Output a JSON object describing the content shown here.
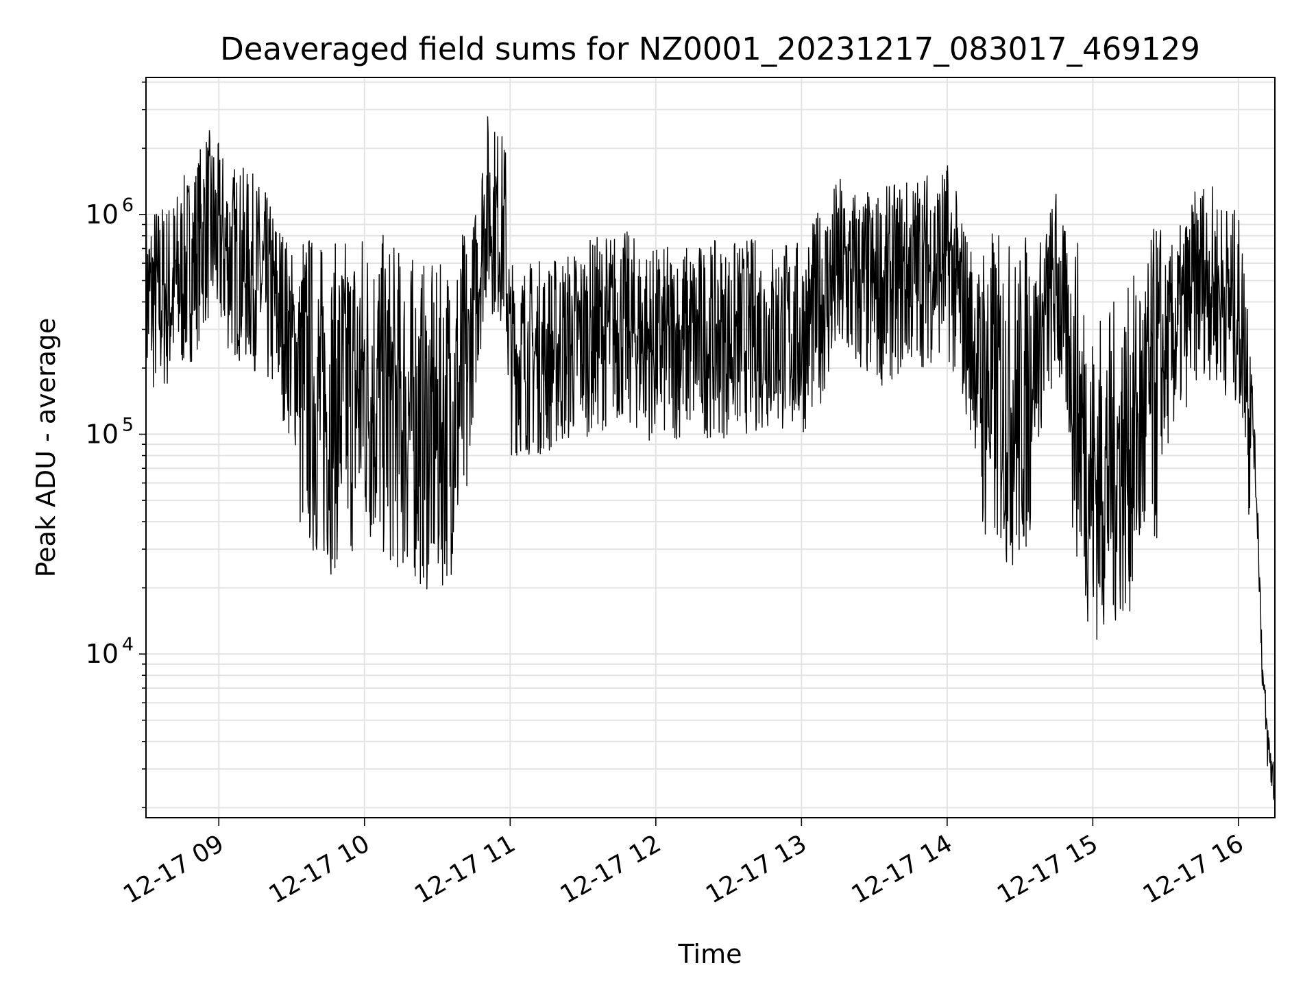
{
  "chart_data": {
    "type": "line",
    "title": "Deaveraged field sums for NZ0001_20231217_083017_469129",
    "xlabel": "Time",
    "ylabel": "Peak ADU - average",
    "yscale": "log",
    "ylim": [
      1800,
      4200000
    ],
    "xlim": [
      "2023-12-17 08:30",
      "2023-12-17 16:15"
    ],
    "grid": true,
    "x_ticks": [
      "12-17 09",
      "12-17 10",
      "12-17 11",
      "12-17 12",
      "12-17 13",
      "12-17 14",
      "12-17 15",
      "12-17 16"
    ],
    "y_ticks": [
      {
        "value": 10000,
        "base": "10",
        "exp": "4"
      },
      {
        "value": 100000,
        "base": "10",
        "exp": "5"
      },
      {
        "value": 1000000,
        "base": "10",
        "exp": "6"
      }
    ],
    "line_color": "#000000",
    "series": [
      {
        "x": [
          "2023-12-17 08:30",
          "2023-12-17 08:40",
          "2023-12-17 08:50",
          "2023-12-17 08:55",
          "2023-12-17 09:05",
          "2023-12-17 09:15",
          "2023-12-17 09:25",
          "2023-12-17 09:35",
          "2023-12-17 09:45",
          "2023-12-17 10:00",
          "2023-12-17 10:15",
          "2023-12-17 10:30",
          "2023-12-17 10:42",
          "2023-12-17 10:50",
          "2023-12-17 10:58",
          "2023-12-17 11:00",
          "2023-12-17 11:15",
          "2023-12-17 11:30",
          "2023-12-17 11:45",
          "2023-12-17 12:00",
          "2023-12-17 12:15",
          "2023-12-17 12:30",
          "2023-12-17 12:45",
          "2023-12-17 13:00",
          "2023-12-17 13:15",
          "2023-12-17 13:30",
          "2023-12-17 13:45",
          "2023-12-17 14:00",
          "2023-12-17 14:15",
          "2023-12-17 14:30",
          "2023-12-17 14:45",
          "2023-12-17 15:00",
          "2023-12-17 15:15",
          "2023-12-17 15:30",
          "2023-12-17 15:45",
          "2023-12-17 16:00",
          "2023-12-17 16:05",
          "2023-12-17 16:08",
          "2023-12-17 16:10",
          "2023-12-17 16:12",
          "2023-12-17 16:15"
        ],
        "y": [
          450000,
          480000,
          700000,
          1000000,
          700000,
          600000,
          400000,
          200000,
          150000,
          200000,
          150000,
          120000,
          200000,
          1200000,
          900000,
          250000,
          250000,
          300000,
          350000,
          280000,
          300000,
          300000,
          320000,
          300000,
          600000,
          500000,
          600000,
          700000,
          200000,
          150000,
          550000,
          70000,
          100000,
          250000,
          600000,
          400000,
          200000,
          40000,
          8000,
          4000,
          2500
        ]
      }
    ]
  }
}
